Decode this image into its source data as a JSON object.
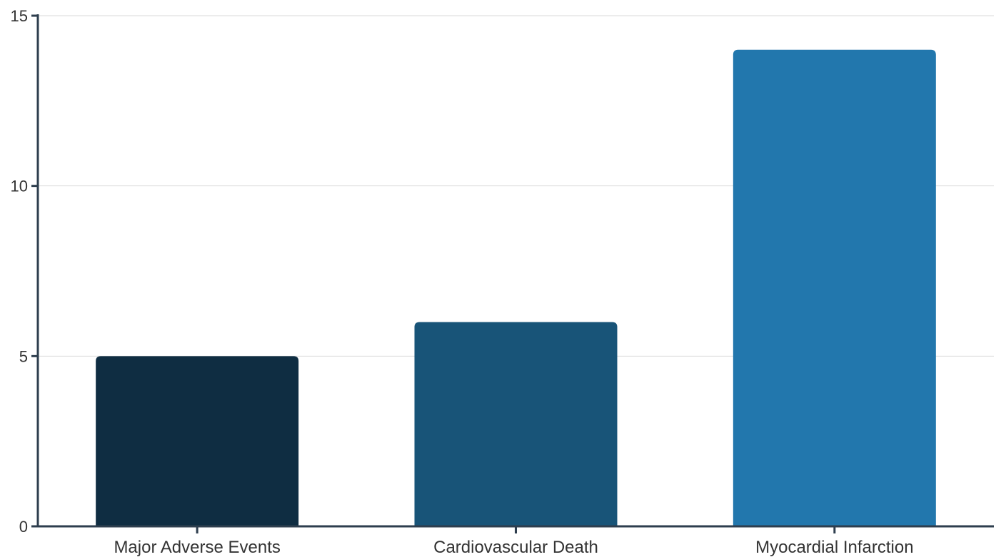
{
  "chart_data": {
    "type": "bar",
    "title": "",
    "xlabel": "",
    "ylabel": "",
    "categories": [
      "Major Adverse Events",
      "Cardiovascular Death",
      "Myocardial Infarction"
    ],
    "values": [
      5,
      6,
      14
    ],
    "ylim": [
      0,
      15
    ],
    "yticks": [
      0,
      5,
      10,
      15
    ],
    "ytick_labels": [
      "0",
      "5",
      "10",
      "15"
    ],
    "bar_colors": [
      "#0f2d42",
      "#185478",
      "#2277ad"
    ],
    "grid": true,
    "legend": "none"
  }
}
